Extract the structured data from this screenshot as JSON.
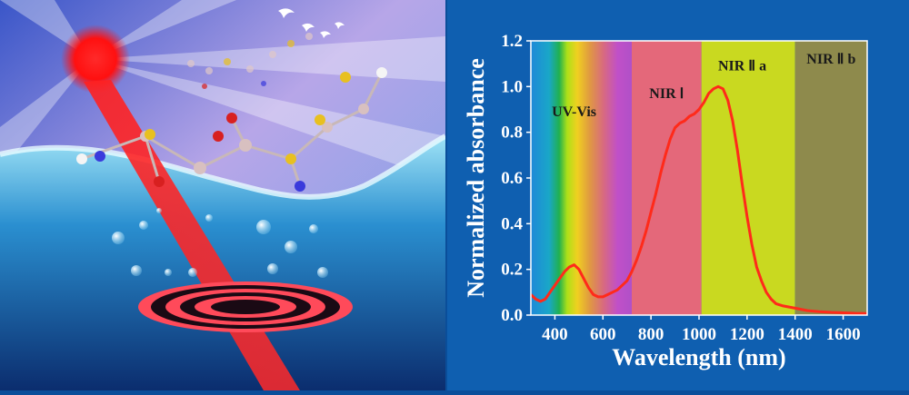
{
  "chart_data": {
    "type": "line",
    "title": "",
    "xlabel": "Wavelength (nm)",
    "ylabel": "Normalized absorbance",
    "xlim": [
      300,
      1700
    ],
    "ylim": [
      0,
      1.2
    ],
    "xticks": [
      400,
      600,
      800,
      1000,
      1200,
      1400,
      1600
    ],
    "yticks": [
      0.0,
      0.2,
      0.4,
      0.6,
      0.8,
      1.0,
      1.2
    ],
    "grid": false,
    "regions": [
      {
        "name": "UV-Vis",
        "from": 300,
        "to": 720,
        "color": "spectrum"
      },
      {
        "name": "NIR Ⅰ",
        "from": 720,
        "to": 1010,
        "color": "#e4687a"
      },
      {
        "name": "NIR Ⅱ a",
        "from": 1010,
        "to": 1400,
        "color": "#c9d920"
      },
      {
        "name": "NIR Ⅱ b",
        "from": 1400,
        "to": 1700,
        "color": "#8e8a4c"
      }
    ],
    "series": [
      {
        "line_color": "#ff2a1a",
        "x": [
          300,
          320,
          340,
          360,
          380,
          400,
          420,
          440,
          460,
          480,
          500,
          520,
          540,
          560,
          580,
          600,
          620,
          640,
          660,
          680,
          700,
          720,
          740,
          760,
          780,
          800,
          820,
          840,
          860,
          880,
          900,
          920,
          940,
          960,
          980,
          1000,
          1020,
          1040,
          1060,
          1080,
          1100,
          1120,
          1140,
          1160,
          1180,
          1200,
          1220,
          1240,
          1260,
          1280,
          1300,
          1320,
          1350,
          1400,
          1450,
          1500,
          1550,
          1600,
          1650,
          1700
        ],
        "y": [
          0.09,
          0.07,
          0.06,
          0.07,
          0.1,
          0.13,
          0.16,
          0.19,
          0.21,
          0.22,
          0.2,
          0.16,
          0.12,
          0.09,
          0.08,
          0.08,
          0.09,
          0.1,
          0.11,
          0.13,
          0.15,
          0.19,
          0.24,
          0.3,
          0.37,
          0.45,
          0.53,
          0.62,
          0.7,
          0.77,
          0.82,
          0.84,
          0.85,
          0.87,
          0.88,
          0.9,
          0.93,
          0.97,
          0.99,
          1.0,
          0.99,
          0.94,
          0.85,
          0.72,
          0.57,
          0.43,
          0.31,
          0.21,
          0.15,
          0.1,
          0.07,
          0.05,
          0.04,
          0.03,
          0.02,
          0.015,
          0.012,
          0.01,
          0.008,
          0.007
        ]
      }
    ]
  },
  "colors": {
    "frame": "#0f5fb0",
    "axis_text": "#ffffff",
    "plot_border": "#ffffff"
  }
}
